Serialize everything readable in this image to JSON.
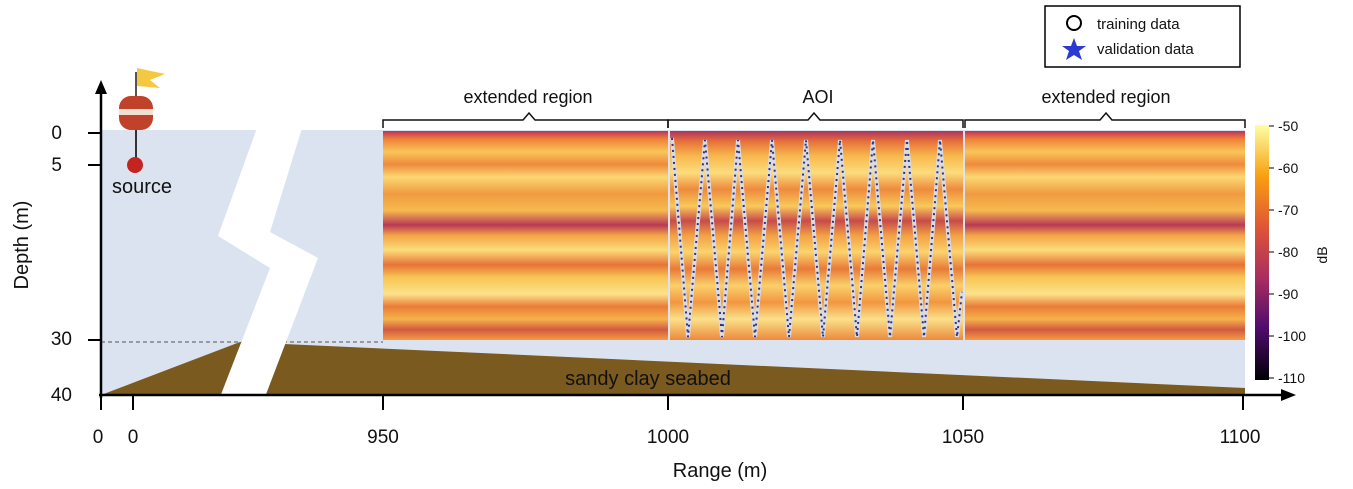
{
  "axes": {
    "y_label": "Depth (m)",
    "x_label": "Range (m)",
    "y_ticks": [
      "0",
      "5",
      "30",
      "40"
    ],
    "x_ticks": [
      "0",
      "0",
      "950",
      "1000",
      "1050",
      "1100"
    ]
  },
  "regions": [
    "extended region",
    "AOI",
    "extended region"
  ],
  "source": "source",
  "seabed": "sandy clay seabed",
  "colorbar": {
    "label": "dB",
    "ticks": [
      "-50",
      "-60",
      "-70",
      "-80",
      "-90",
      "-100",
      "-110"
    ]
  },
  "legend": [
    "training data",
    "validation data"
  ]
}
